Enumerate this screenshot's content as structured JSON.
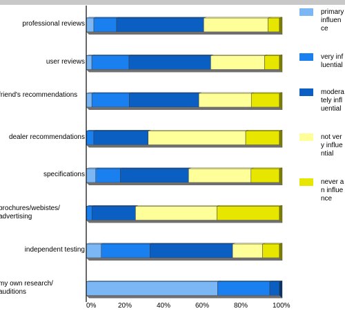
{
  "chart_data": {
    "type": "bar",
    "orientation": "horizontal",
    "stacked": "percent",
    "categories": [
      "professional reviews",
      "user reviews",
      "friend's recommendations",
      "dealer recommendations",
      "specifications",
      "brochures/webistes/ advertising",
      "independent testing",
      "my own research/ auditions"
    ],
    "series": [
      {
        "name": "primary influence",
        "color": "#7bb6f5",
        "values": [
          4,
          3,
          3,
          0,
          5,
          0,
          8,
          68
        ]
      },
      {
        "name": "very influential",
        "color": "#1a7fef",
        "values": [
          12,
          20,
          20,
          4,
          13,
          3,
          26,
          27
        ]
      },
      {
        "name": "moderately influential",
        "color": "#0b5ec2",
        "values": [
          46,
          44,
          37,
          29,
          36,
          23,
          44,
          5
        ]
      },
      {
        "name": "not very influential",
        "color": "#ffff99",
        "values": [
          34,
          29,
          28,
          52,
          33,
          43,
          16,
          0
        ]
      },
      {
        "name": "never an influence",
        "color": "#e6e600",
        "values": [
          6,
          8,
          15,
          18,
          15,
          33,
          9,
          0
        ]
      }
    ],
    "xlim": [
      0,
      100
    ],
    "x_ticks": [
      "0%",
      "20%",
      "40%",
      "60%",
      "80%",
      "100%"
    ],
    "legend_position": "right",
    "grid": false
  }
}
